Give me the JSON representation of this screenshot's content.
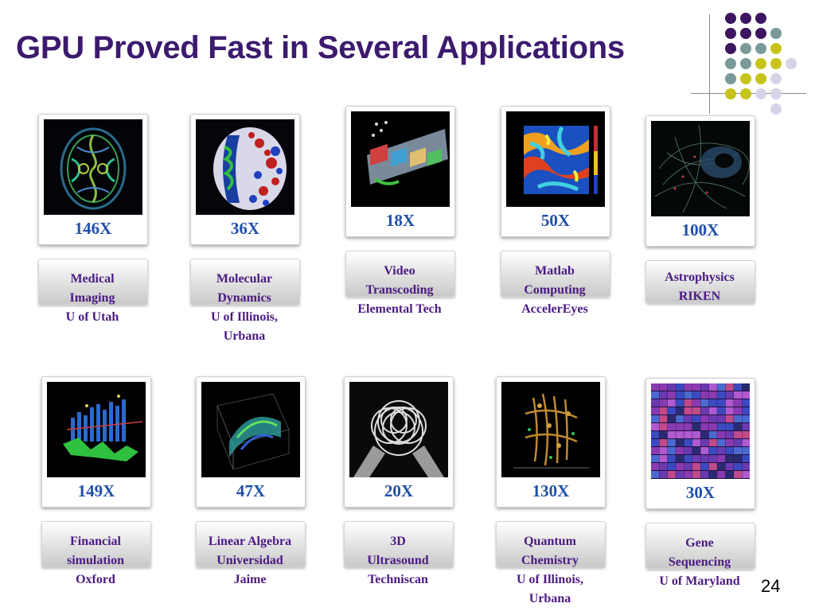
{
  "title": "GPU Proved Fast in Several Applications",
  "page_number": "24",
  "decor_colors": {
    "purple": "#3d1561",
    "teal": "#7a9a9a",
    "yellow": "#c6c41c",
    "lavender": "#d6d4e8"
  },
  "applications": [
    {
      "speedup": "146X",
      "lines": [
        "Medical",
        "Imaging",
        "U of Utah"
      ],
      "image_icon": "brain-scan-image"
    },
    {
      "speedup": "36X",
      "lines": [
        "Molecular",
        "Dynamics",
        "U of Illinois,",
        "Urbana"
      ],
      "image_icon": "protein-molecule-image"
    },
    {
      "speedup": "18X",
      "lines": [
        "Video",
        "Transcoding",
        "Elemental Tech"
      ],
      "image_icon": "video-frames-image"
    },
    {
      "speedup": "50X",
      "lines": [
        "Matlab",
        "Computing",
        "AccelerEyes"
      ],
      "image_icon": "matlab-heatmap-image"
    },
    {
      "speedup": "100X",
      "lines": [
        "Astrophysics",
        "RIKEN"
      ],
      "image_icon": "galaxy-simulation-image"
    },
    {
      "speedup": "149X",
      "lines": [
        "Financial",
        "simulation",
        "Oxford"
      ],
      "image_icon": "financial-chart-image"
    },
    {
      "speedup": "47X",
      "lines": [
        "Linear Algebra",
        "Universidad",
        "Jaime"
      ],
      "image_icon": "linear-algebra-surface-image"
    },
    {
      "speedup": "20X",
      "lines": [
        "3D",
        "Ultrasound",
        "Techniscan"
      ],
      "image_icon": "ultrasound-rings-image"
    },
    {
      "speedup": "130X",
      "lines": [
        "Quantum",
        "Chemistry",
        "U of Illinois,",
        "Urbana"
      ],
      "image_icon": "quantum-chemistry-image"
    },
    {
      "speedup": "30X",
      "lines": [
        "Gene",
        "Sequencing",
        "U of Maryland"
      ],
      "image_icon": "gene-sequencing-image"
    }
  ]
}
